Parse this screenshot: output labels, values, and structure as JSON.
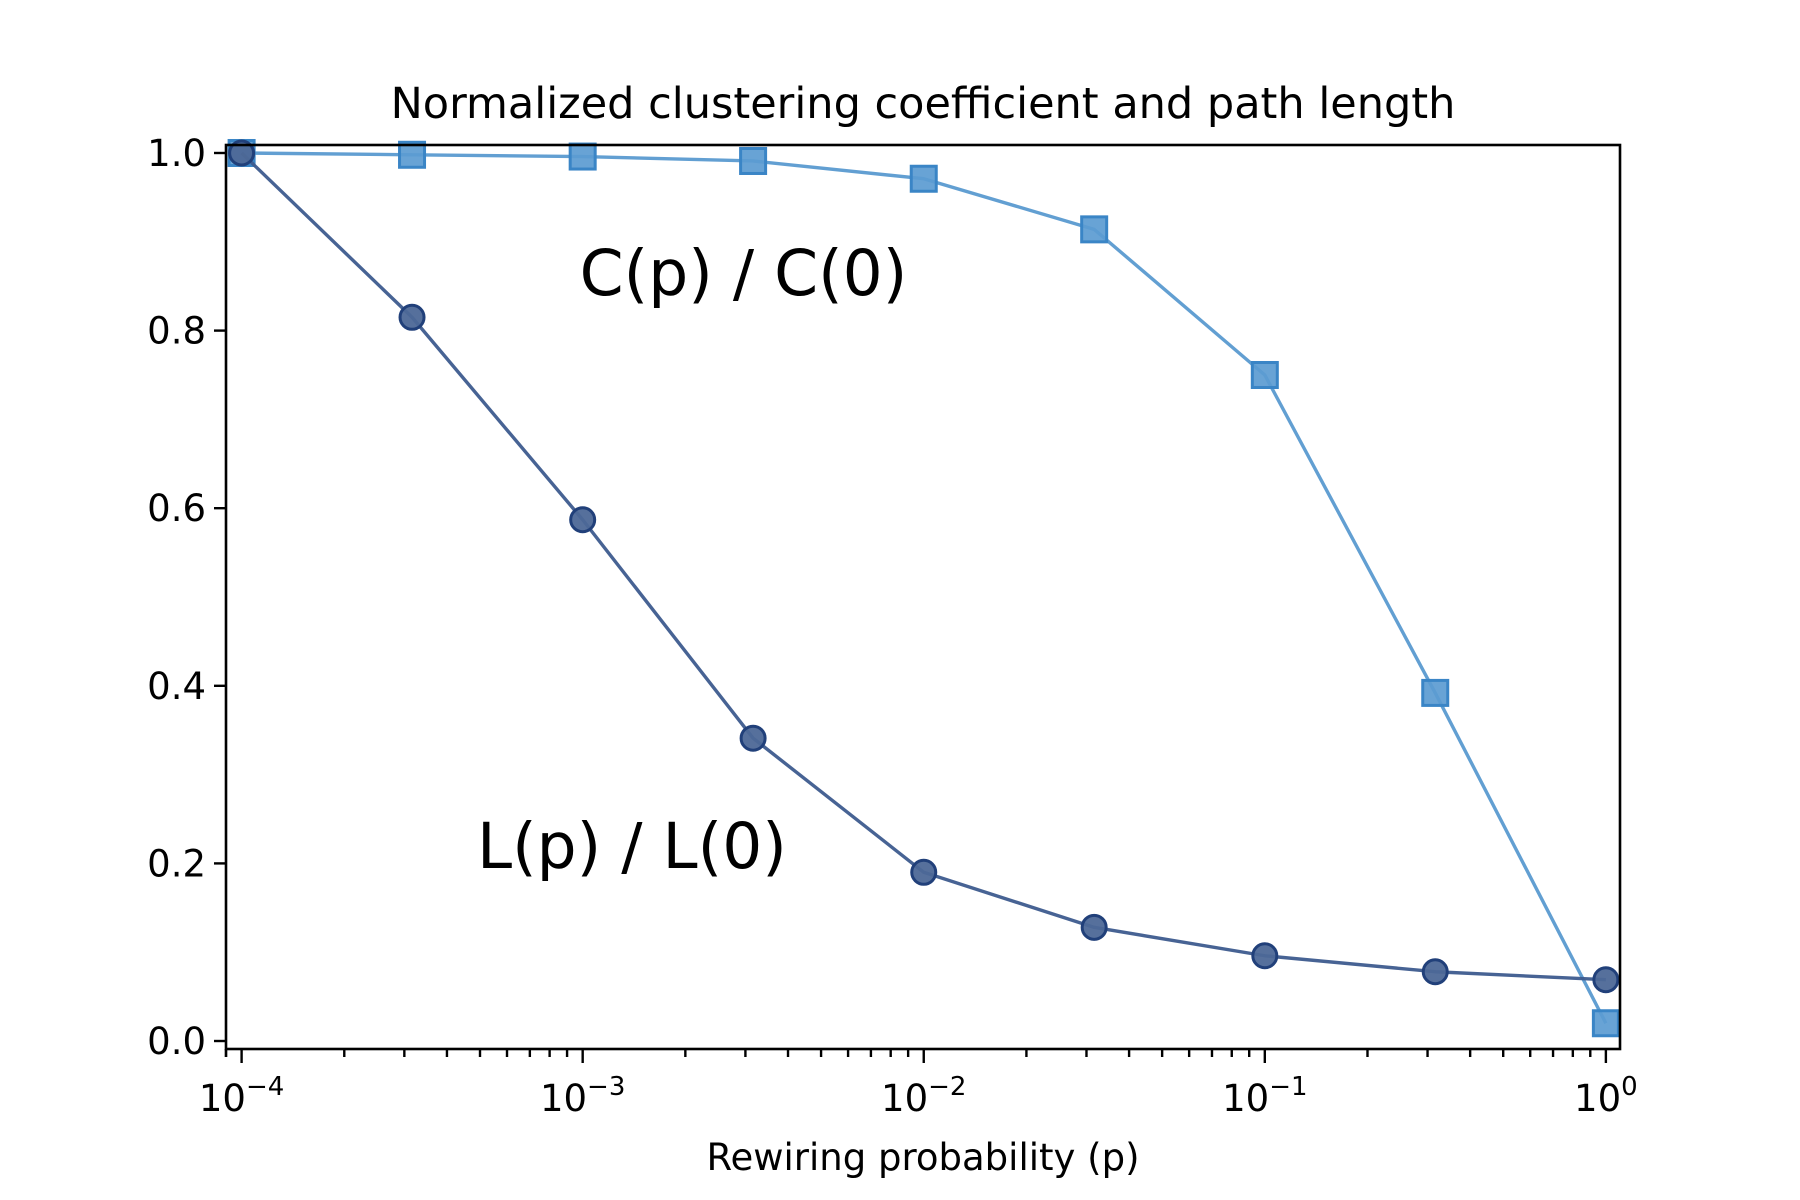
{
  "chart_data": {
    "type": "line",
    "title": "Normalized clustering coefficient and path length",
    "xlabel": "Rewiring probability (p)",
    "ylabel": "",
    "xscale": "log",
    "xlim": [
      9e-05,
      1.1
    ],
    "ylim": [
      -0.009,
      1.009
    ],
    "grid": false,
    "legend": "none",
    "x": [
      0.0001,
      0.000316,
      0.001,
      0.00316,
      0.01,
      0.0316,
      0.1,
      0.316,
      1.0
    ],
    "x_ticks": [
      {
        "value": 0.0001,
        "base": "10",
        "exp": "−4"
      },
      {
        "value": 0.001,
        "base": "10",
        "exp": "−3"
      },
      {
        "value": 0.01,
        "base": "10",
        "exp": "−2"
      },
      {
        "value": 0.1,
        "base": "10",
        "exp": "−1"
      },
      {
        "value": 1.0,
        "base": "10",
        "exp": "0"
      }
    ],
    "y_ticks": [
      {
        "value": 0.0,
        "label": "0.0"
      },
      {
        "value": 0.2,
        "label": "0.2"
      },
      {
        "value": 0.4,
        "label": "0.4"
      },
      {
        "value": 0.6,
        "label": "0.6"
      },
      {
        "value": 0.8,
        "label": "0.8"
      },
      {
        "value": 1.0,
        "label": "1.0"
      }
    ],
    "series": [
      {
        "name": "C(p) / C(0)",
        "marker": "square",
        "line_color": "#5a9ad0",
        "marker_fill": "#5b9bd1",
        "marker_edge": "#3a85c6",
        "values": [
          1.0,
          0.998,
          0.996,
          0.991,
          0.971,
          0.914,
          0.75,
          0.392,
          0.02
        ]
      },
      {
        "name": "L(p) / L(0)",
        "marker": "circle",
        "line_color": "#3d5b8e",
        "marker_fill": "#4d6897",
        "marker_edge": "#21407a",
        "values": [
          1.0,
          0.815,
          0.587,
          0.341,
          0.19,
          0.128,
          0.096,
          0.078,
          0.069
        ]
      }
    ],
    "annotations": [
      {
        "text": "C(p) / C(0)",
        "x": 0.00098,
        "y": 0.84
      },
      {
        "text": "L(p) / L(0)",
        "x": 0.00049,
        "y": 0.195
      }
    ]
  }
}
